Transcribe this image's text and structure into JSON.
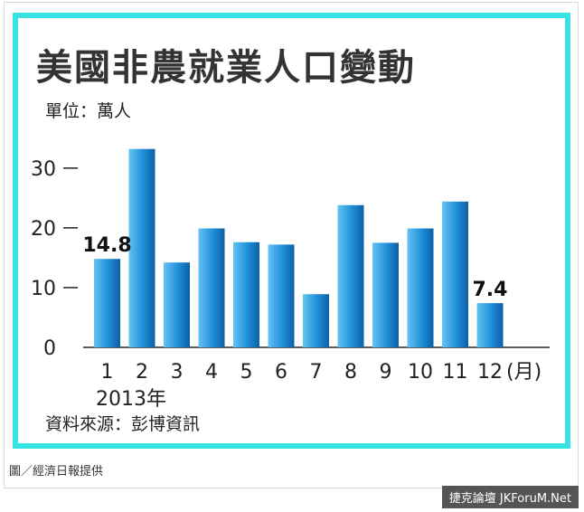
{
  "chart_data": {
    "type": "bar",
    "title": "美國非農就業人口變動",
    "unit_label": "單位：萬人",
    "categories": [
      "1",
      "2",
      "3",
      "4",
      "5",
      "6",
      "7",
      "8",
      "9",
      "10",
      "11",
      "12"
    ],
    "values": [
      14.8,
      33.2,
      14.2,
      19.9,
      17.6,
      17.2,
      8.9,
      23.8,
      17.5,
      19.9,
      24.4,
      7.4
    ],
    "x_unit": "(月)",
    "x_year": "2013年",
    "ylim": [
      0,
      33
    ],
    "yticks": [
      "0",
      "10",
      "20",
      "30"
    ],
    "data_labels": [
      {
        "index": 0,
        "text": "14.8"
      },
      {
        "index": 11,
        "text": "7.4"
      }
    ],
    "bar_color": "#1e8fd8",
    "grid": false
  },
  "source": "資料來源：彭博資訊",
  "credit": "圖／經濟日報提供",
  "watermark": "捷克論壇 JKForuM.Net",
  "colors": {
    "frame": "#37e3e3",
    "bar": "#1e8fd8",
    "watermark_bg": "#555555"
  }
}
